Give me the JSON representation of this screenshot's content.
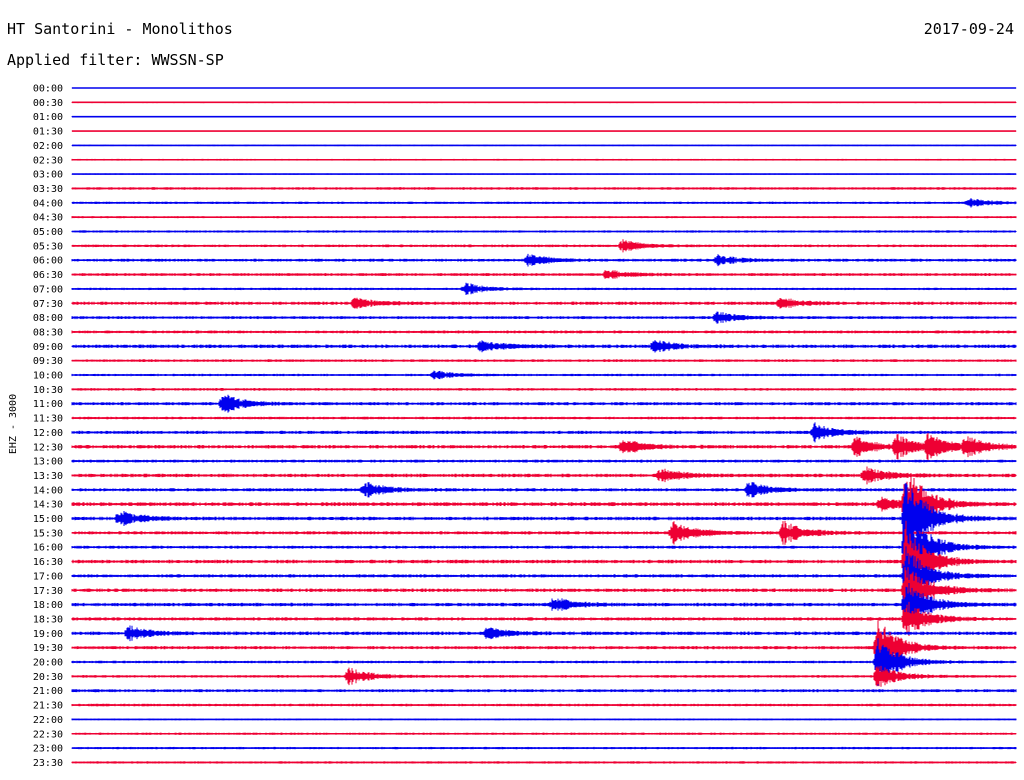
{
  "header": {
    "station": "HT Santorini - Monolithos",
    "date": "2017-09-24",
    "filter": "Applied filter: WWSSN-SP"
  },
  "colors": {
    "odd_trace": "#0000ee",
    "even_trace": "#ee0033"
  },
  "chart_data": {
    "type": "line",
    "title": "HT Santorini - Monolithos",
    "ylabel": "EHZ - 3000",
    "row_labels": [
      "00:00",
      "00:30",
      "01:00",
      "01:30",
      "02:00",
      "02:30",
      "03:00",
      "03:30",
      "04:00",
      "04:30",
      "05:00",
      "05:30",
      "06:00",
      "06:30",
      "07:00",
      "07:30",
      "08:00",
      "08:30",
      "09:00",
      "09:30",
      "10:00",
      "10:30",
      "11:00",
      "11:30",
      "12:00",
      "12:30",
      "13:00",
      "13:30",
      "14:00",
      "14:30",
      "15:00",
      "15:30",
      "16:00",
      "16:30",
      "17:00",
      "17:30",
      "18:00",
      "18:30",
      "19:00",
      "19:30",
      "20:00",
      "20:30",
      "21:00",
      "21:30",
      "22:00",
      "22:30",
      "23:00",
      "23:30"
    ],
    "trace_colors": "alternating blue/red per 30-min row",
    "row_minutes": 30,
    "noise_level": [
      0.3,
      0.5,
      0.3,
      0.3,
      0.5,
      0.6,
      0.5,
      0.9,
      0.8,
      0.7,
      0.8,
      0.9,
      1.0,
      1.0,
      0.8,
      1.1,
      1.0,
      1.0,
      1.2,
      0.9,
      0.8,
      0.9,
      1.1,
      0.9,
      1.1,
      1.2,
      1.0,
      1.2,
      1.1,
      1.3,
      1.2,
      1.1,
      1.0,
      1.2,
      1.1,
      1.2,
      1.2,
      1.1,
      1.2,
      1.1,
      0.9,
      0.9,
      1.0,
      0.9,
      0.6,
      0.8,
      0.8,
      0.8
    ],
    "events": [
      {
        "row": 8,
        "minute": 28.5,
        "amplitude": 5
      },
      {
        "row": 11,
        "minute": 17.5,
        "amplitude": 6
      },
      {
        "row": 12,
        "minute": 14.5,
        "amplitude": 6
      },
      {
        "row": 12,
        "minute": 20.5,
        "amplitude": 5
      },
      {
        "row": 13,
        "minute": 17.0,
        "amplitude": 5
      },
      {
        "row": 14,
        "minute": 12.5,
        "amplitude": 6
      },
      {
        "row": 15,
        "minute": 9.0,
        "amplitude": 6
      },
      {
        "row": 15,
        "minute": 22.5,
        "amplitude": 6
      },
      {
        "row": 16,
        "minute": 20.5,
        "amplitude": 6
      },
      {
        "row": 18,
        "minute": 13.0,
        "amplitude": 6
      },
      {
        "row": 18,
        "minute": 18.5,
        "amplitude": 6
      },
      {
        "row": 20,
        "minute": 11.5,
        "amplitude": 5
      },
      {
        "row": 22,
        "minute": 4.8,
        "amplitude": 10
      },
      {
        "row": 24,
        "minute": 23.6,
        "amplitude": 9
      },
      {
        "row": 25,
        "minute": 17.5,
        "amplitude": 8
      },
      {
        "row": 25,
        "minute": 24.9,
        "amplitude": 10
      },
      {
        "row": 25,
        "minute": 26.2,
        "amplitude": 12
      },
      {
        "row": 25,
        "minute": 27.2,
        "amplitude": 12
      },
      {
        "row": 25,
        "minute": 28.4,
        "amplitude": 10
      },
      {
        "row": 27,
        "minute": 18.7,
        "amplitude": 7
      },
      {
        "row": 27,
        "minute": 25.2,
        "amplitude": 9
      },
      {
        "row": 28,
        "minute": 9.3,
        "amplitude": 8
      },
      {
        "row": 28,
        "minute": 21.5,
        "amplitude": 8
      },
      {
        "row": 29,
        "minute": 25.7,
        "amplitude": 7
      },
      {
        "row": 29,
        "minute": 26.5,
        "amplitude": 38
      },
      {
        "row": 30,
        "minute": 1.5,
        "amplitude": 8
      },
      {
        "row": 30,
        "minute": 26.5,
        "amplitude": 45
      },
      {
        "row": 31,
        "minute": 19.1,
        "amplitude": 12
      },
      {
        "row": 31,
        "minute": 22.6,
        "amplitude": 12
      },
      {
        "row": 32,
        "minute": 26.5,
        "amplitude": 45
      },
      {
        "row": 33,
        "minute": 26.5,
        "amplitude": 40
      },
      {
        "row": 34,
        "minute": 26.5,
        "amplitude": 30
      },
      {
        "row": 35,
        "minute": 26.5,
        "amplitude": 30
      },
      {
        "row": 36,
        "minute": 15.3,
        "amplitude": 8
      },
      {
        "row": 36,
        "minute": 26.5,
        "amplitude": 25
      },
      {
        "row": 37,
        "minute": 26.5,
        "amplitude": 20
      },
      {
        "row": 38,
        "minute": 1.8,
        "amplitude": 7
      },
      {
        "row": 38,
        "minute": 13.2,
        "amplitude": 6
      },
      {
        "row": 39,
        "minute": 25.6,
        "amplitude": 30
      },
      {
        "row": 40,
        "minute": 25.6,
        "amplitude": 25
      },
      {
        "row": 41,
        "minute": 8.8,
        "amplitude": 9
      },
      {
        "row": 41,
        "minute": 25.6,
        "amplitude": 12
      }
    ]
  }
}
